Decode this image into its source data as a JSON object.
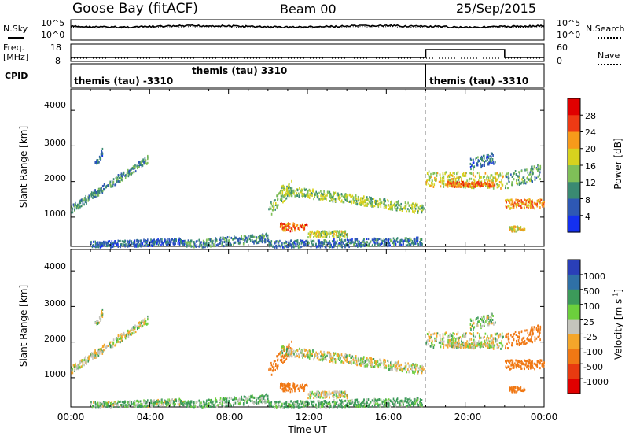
{
  "header": {
    "station": "Goose Bay (fitACF)",
    "beam": "Beam 00",
    "date": "25/Sep/2015"
  },
  "noise_panel": {
    "left_label": "N.Sky",
    "right_label": "N.Search",
    "left_ticks": [
      "10^5",
      "10^0"
    ],
    "right_ticks": [
      "10^5",
      "10^0"
    ]
  },
  "freq_panel": {
    "left_label_line1": "Freq.",
    "left_label_line2": "[MHz]",
    "right_label": "Nave",
    "left_ticks": [
      "18",
      "8"
    ],
    "right_ticks": [
      "60",
      "0"
    ]
  },
  "cpid": {
    "label": "CPID",
    "segments": [
      {
        "start_hour": 0,
        "end_hour": 6,
        "text": "themis (tau) -3310"
      },
      {
        "start_hour": 6,
        "end_hour": 18,
        "text": "themis (tau) 3310"
      },
      {
        "start_hour": 18,
        "end_hour": 24,
        "text": "themis (tau) -3310"
      }
    ]
  },
  "chart_data": [
    {
      "type": "heatmap",
      "panel": "power",
      "ylabel": "Slant Range [km]",
      "yticks": [
        1000,
        2000,
        3000,
        4000
      ],
      "ylim": [
        180,
        4600
      ],
      "xlim": [
        0,
        24
      ],
      "colorbar_label": "Power [dB]",
      "colorbar_ticks": [
        "4",
        "8",
        "12",
        "16",
        "20",
        "24",
        "28"
      ],
      "colorbar_range": [
        0,
        32
      ],
      "colorbar_colors": [
        "#1430f0",
        "#2e58b4",
        "#3a8a72",
        "#7fbf58",
        "#d7d21e",
        "#f79a1a",
        "#ee3a14",
        "#e00000"
      ],
      "clusters": [
        {
          "x": [
            0.0,
            3.9
          ],
          "y": [
            1250,
            2650
          ],
          "dy": 110,
          "val": 10
        },
        {
          "x": [
            1.2,
            1.6
          ],
          "y": [
            2450,
            2900
          ],
          "dy": 140,
          "val": 7
        },
        {
          "x": [
            1.0,
            5.8
          ],
          "y": [
            250,
            350
          ],
          "dy": 90,
          "val": 6
        },
        {
          "x": [
            5.8,
            10.0
          ],
          "y": [
            250,
            450
          ],
          "dy": 120,
          "val": 9
        },
        {
          "x": [
            10.0,
            11.2
          ],
          "y": [
            1200,
            1900
          ],
          "dy": 200,
          "val": 14
        },
        {
          "x": [
            10.6,
            17.9
          ],
          "y": [
            1800,
            1250
          ],
          "dy": 130,
          "val": 15
        },
        {
          "x": [
            10.6,
            12.0
          ],
          "y": [
            750,
            750
          ],
          "dy": 120,
          "val": 24
        },
        {
          "x": [
            12.0,
            14.0
          ],
          "y": [
            550,
            550
          ],
          "dy": 90,
          "val": 16
        },
        {
          "x": [
            10.0,
            17.8
          ],
          "y": [
            250,
            350
          ],
          "dy": 110,
          "val": 8
        },
        {
          "x": [
            18.0,
            21.9
          ],
          "y": [
            2100,
            2050
          ],
          "dy": 220,
          "val": 17
        },
        {
          "x": [
            19.0,
            21.5
          ],
          "y": [
            1950,
            1950
          ],
          "dy": 70,
          "val": 24
        },
        {
          "x": [
            20.2,
            21.5
          ],
          "y": [
            2500,
            2700
          ],
          "dy": 160,
          "val": 8
        },
        {
          "x": [
            22.0,
            23.8
          ],
          "y": [
            2050,
            2300
          ],
          "dy": 220,
          "val": 12
        },
        {
          "x": [
            22.0,
            24.0
          ],
          "y": [
            1400,
            1400
          ],
          "dy": 130,
          "val": 22
        },
        {
          "x": [
            22.2,
            23.0
          ],
          "y": [
            700,
            700
          ],
          "dy": 70,
          "val": 18
        }
      ]
    },
    {
      "type": "heatmap",
      "panel": "velocity",
      "ylabel": "Slant Range [km]",
      "yticks": [
        1000,
        2000,
        3000,
        4000
      ],
      "ylim": [
        180,
        4600
      ],
      "xlim": [
        0,
        24
      ],
      "colorbar_label": "Velocity [m s^-1]",
      "colorbar_ticks": [
        "1000",
        "500",
        "100",
        "25",
        "-25",
        "-100",
        "-500",
        "-1000"
      ],
      "colorbar_range": [
        -1200,
        1200
      ],
      "colorbar_colors": [
        "#2a3fb8",
        "#2f70a6",
        "#3c9a5a",
        "#6ccf3c",
        "#c4c4bc",
        "#f4a62a",
        "#f07814",
        "#e83a10",
        "#e00000"
      ],
      "clusters": [
        {
          "x": [
            0.0,
            3.9
          ],
          "y": [
            1250,
            2650
          ],
          "dy": 110,
          "val": 0
        },
        {
          "x": [
            1.2,
            1.6
          ],
          "y": [
            2450,
            2900
          ],
          "dy": 140,
          "val": 0
        },
        {
          "x": [
            1.0,
            5.8
          ],
          "y": [
            250,
            350
          ],
          "dy": 90,
          "val": 40
        },
        {
          "x": [
            5.8,
            10.0
          ],
          "y": [
            250,
            450
          ],
          "dy": 120,
          "val": 60
        },
        {
          "x": [
            10.0,
            11.2
          ],
          "y": [
            1200,
            1900
          ],
          "dy": 200,
          "val": -300
        },
        {
          "x": [
            10.6,
            17.9
          ],
          "y": [
            1800,
            1250
          ],
          "dy": 130,
          "val": 0
        },
        {
          "x": [
            10.6,
            12.0
          ],
          "y": [
            750,
            750
          ],
          "dy": 120,
          "val": -200
        },
        {
          "x": [
            12.0,
            14.0
          ],
          "y": [
            550,
            550
          ],
          "dy": 90,
          "val": 0
        },
        {
          "x": [
            10.0,
            17.8
          ],
          "y": [
            250,
            350
          ],
          "dy": 110,
          "val": 80
        },
        {
          "x": [
            18.0,
            21.9
          ],
          "y": [
            2100,
            2050
          ],
          "dy": 220,
          "val": 0
        },
        {
          "x": [
            19.0,
            21.5
          ],
          "y": [
            1950,
            1950
          ],
          "dy": 70,
          "val": 0
        },
        {
          "x": [
            20.2,
            21.5
          ],
          "y": [
            2500,
            2700
          ],
          "dy": 160,
          "val": 40
        },
        {
          "x": [
            22.0,
            23.8
          ],
          "y": [
            2050,
            2300
          ],
          "dy": 220,
          "val": -300
        },
        {
          "x": [
            22.0,
            24.0
          ],
          "y": [
            1400,
            1400
          ],
          "dy": 130,
          "val": -400
        },
        {
          "x": [
            22.2,
            23.0
          ],
          "y": [
            700,
            700
          ],
          "dy": 70,
          "val": -200
        }
      ]
    }
  ],
  "xaxis": {
    "ticks": [
      "00:00",
      "04:00",
      "08:00",
      "12:00",
      "16:00",
      "20:00",
      "00:00"
    ],
    "label": "Time UT"
  }
}
